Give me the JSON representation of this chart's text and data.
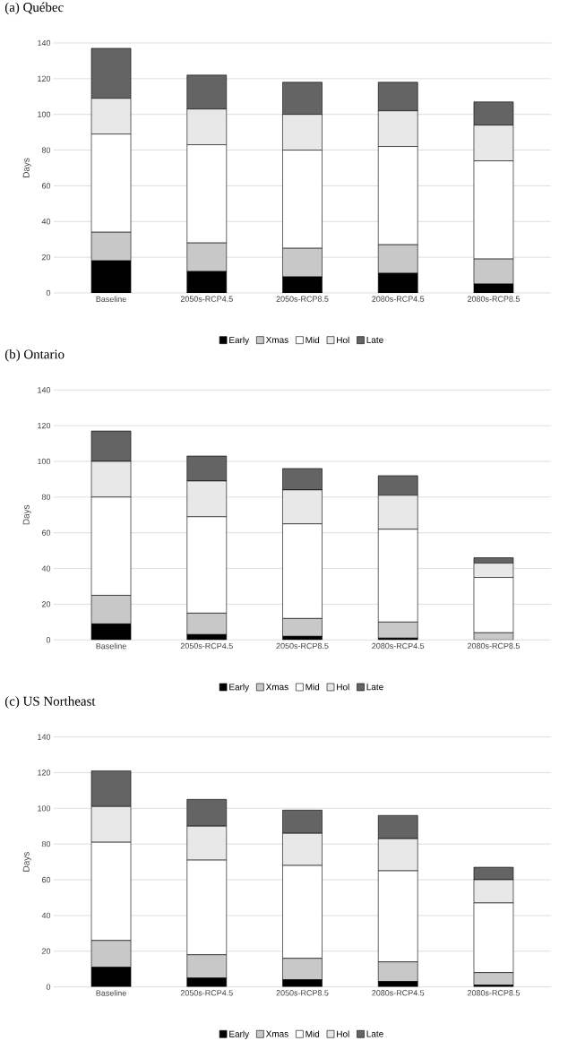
{
  "chart_data": [
    {
      "type": "bar",
      "title": "(a) Québec",
      "ylabel": "Days",
      "stacked": true,
      "grid": "y",
      "legend": "bottom",
      "categories": [
        "Baseline",
        "2050s-RCP4.5",
        "2050s-RCP8.5",
        "2080s-RCP4.5",
        "2080s-RCP8.5"
      ],
      "ylim": [
        0,
        140
      ],
      "yticks": [
        0,
        20,
        40,
        60,
        80,
        100,
        120,
        140
      ],
      "series": [
        {
          "name": "Early",
          "color": "#000000",
          "values": [
            18,
            12,
            9,
            11,
            5
          ]
        },
        {
          "name": "Xmas",
          "color": "#c8c8c8",
          "values": [
            16,
            16,
            16,
            16,
            14
          ]
        },
        {
          "name": "Mid",
          "color": "#ffffff",
          "values": [
            55,
            55,
            55,
            55,
            55
          ]
        },
        {
          "name": "Hol",
          "color": "#e8e8e8",
          "values": [
            20,
            20,
            20,
            20,
            20
          ]
        },
        {
          "name": "Late",
          "color": "#646464",
          "values": [
            28,
            19,
            18,
            16,
            13
          ]
        }
      ]
    },
    {
      "type": "bar",
      "title": "(b) Ontario",
      "ylabel": "Days",
      "stacked": true,
      "grid": "y",
      "legend": "bottom",
      "categories": [
        "Baseline",
        "2050s-RCP4.5",
        "2050s-RCP8.5",
        "2080s-RCP4.5",
        "2080s-RCP8.5"
      ],
      "ylim": [
        0,
        140
      ],
      "yticks": [
        0,
        20,
        40,
        60,
        80,
        100,
        120,
        140
      ],
      "series": [
        {
          "name": "Early",
          "color": "#000000",
          "values": [
            9,
            3,
            2,
            1,
            0
          ]
        },
        {
          "name": "Xmas",
          "color": "#c8c8c8",
          "values": [
            16,
            12,
            10,
            9,
            4
          ]
        },
        {
          "name": "Mid",
          "color": "#ffffff",
          "values": [
            55,
            54,
            53,
            52,
            31
          ]
        },
        {
          "name": "Hol",
          "color": "#e8e8e8",
          "values": [
            20,
            20,
            19,
            19,
            8
          ]
        },
        {
          "name": "Late",
          "color": "#646464",
          "values": [
            17,
            14,
            12,
            11,
            3
          ]
        }
      ]
    },
    {
      "type": "bar",
      "title": "(c) US Northeast",
      "ylabel": "Days",
      "stacked": true,
      "grid": "y",
      "legend": "bottom",
      "categories": [
        "Baseline",
        "2050s-RCP4.5",
        "2050s-RCP8.5",
        "2080s-RCP4.5",
        "2080s-RCP8.5"
      ],
      "ylim": [
        0,
        140
      ],
      "yticks": [
        0,
        20,
        40,
        60,
        80,
        100,
        120,
        140
      ],
      "series": [
        {
          "name": "Early",
          "color": "#000000",
          "values": [
            11,
            5,
            4,
            3,
            1
          ]
        },
        {
          "name": "Xmas",
          "color": "#c8c8c8",
          "values": [
            15,
            13,
            12,
            11,
            7
          ]
        },
        {
          "name": "Mid",
          "color": "#ffffff",
          "values": [
            55,
            53,
            52,
            51,
            39
          ]
        },
        {
          "name": "Hol",
          "color": "#e8e8e8",
          "values": [
            20,
            19,
            18,
            18,
            13
          ]
        },
        {
          "name": "Late",
          "color": "#646464",
          "values": [
            20,
            15,
            13,
            13,
            7
          ]
        }
      ]
    }
  ]
}
